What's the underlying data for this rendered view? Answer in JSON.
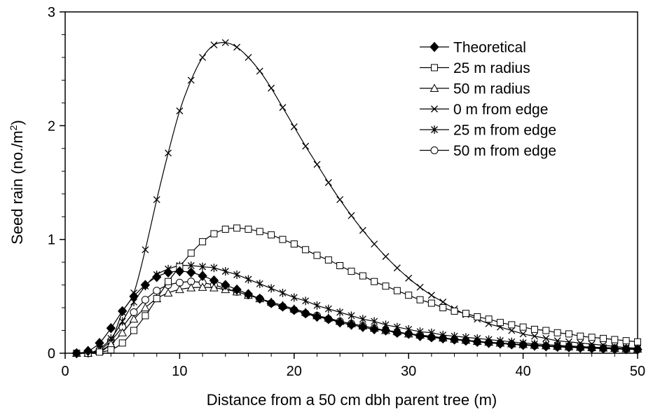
{
  "chart_data": {
    "type": "line",
    "xlabel": "Distance from a 50 cm dbh parent tree (m)",
    "ylabel_main": "Seed rain (no./m",
    "ylabel_sup": "2",
    "ylabel_tail": ")",
    "xlim": [
      0,
      50
    ],
    "ylim": [
      0,
      3
    ],
    "x_ticks": [
      "0",
      "10",
      "20",
      "30",
      "40",
      "50"
    ],
    "y_ticks": [
      "0",
      "1",
      "2",
      "3"
    ],
    "grid": false,
    "legend_position": "top-right",
    "x": [
      1,
      2,
      3,
      4,
      5,
      6,
      7,
      8,
      9,
      10,
      11,
      12,
      13,
      14,
      15,
      16,
      17,
      18,
      19,
      20,
      21,
      22,
      23,
      24,
      25,
      26,
      27,
      28,
      29,
      30,
      31,
      32,
      33,
      34,
      35,
      36,
      37,
      38,
      39,
      40,
      41,
      42,
      43,
      44,
      45,
      46,
      47,
      48,
      49,
      50
    ],
    "series": [
      {
        "name": "Theoretical",
        "marker": "diamond-filled",
        "values": [
          0,
          0.02,
          0.09,
          0.22,
          0.37,
          0.5,
          0.6,
          0.67,
          0.71,
          0.72,
          0.71,
          0.68,
          0.64,
          0.6,
          0.56,
          0.52,
          0.48,
          0.44,
          0.41,
          0.38,
          0.35,
          0.32,
          0.3,
          0.27,
          0.25,
          0.23,
          0.21,
          0.2,
          0.18,
          0.17,
          0.15,
          0.14,
          0.13,
          0.12,
          0.11,
          0.1,
          0.09,
          0.085,
          0.078,
          0.072,
          0.066,
          0.061,
          0.056,
          0.052,
          0.048,
          0.044,
          0.041,
          0.038,
          0.035,
          0.032
        ]
      },
      {
        "name": "25 m radius",
        "marker": "square-open",
        "values": [
          0,
          0,
          0.01,
          0.03,
          0.09,
          0.2,
          0.33,
          0.48,
          0.63,
          0.76,
          0.88,
          0.98,
          1.05,
          1.09,
          1.1,
          1.09,
          1.07,
          1.04,
          1.0,
          0.96,
          0.91,
          0.86,
          0.82,
          0.77,
          0.72,
          0.68,
          0.63,
          0.59,
          0.55,
          0.51,
          0.47,
          0.44,
          0.4,
          0.37,
          0.35,
          0.32,
          0.3,
          0.27,
          0.25,
          0.23,
          0.21,
          0.2,
          0.18,
          0.17,
          0.15,
          0.14,
          0.13,
          0.12,
          0.11,
          0.1
        ]
      },
      {
        "name": "50 m radius",
        "marker": "triangle-open",
        "values": [
          0,
          0,
          0.02,
          0.08,
          0.18,
          0.3,
          0.4,
          0.48,
          0.53,
          0.56,
          0.575,
          0.58,
          0.575,
          0.56,
          0.54,
          0.51,
          0.48,
          0.45,
          0.42,
          0.39,
          0.36,
          0.33,
          0.31,
          0.28,
          0.26,
          0.24,
          0.22,
          0.2,
          0.19,
          0.17,
          0.16,
          0.15,
          0.135,
          0.125,
          0.115,
          0.105,
          0.097,
          0.09,
          0.083,
          0.077,
          0.071,
          0.066,
          0.061,
          0.057,
          0.053,
          0.049,
          0.046,
          0.043,
          0.04,
          0.037
        ]
      },
      {
        "name": "0 m from edge",
        "marker": "x",
        "values": [
          0,
          0,
          0.01,
          0.1,
          0.36,
          0.53,
          0.91,
          1.35,
          1.76,
          2.13,
          2.4,
          2.6,
          2.71,
          2.73,
          2.69,
          2.6,
          2.48,
          2.33,
          2.16,
          1.99,
          1.82,
          1.66,
          1.5,
          1.35,
          1.21,
          1.08,
          0.96,
          0.85,
          0.75,
          0.66,
          0.58,
          0.51,
          0.45,
          0.39,
          0.34,
          0.3,
          0.26,
          0.23,
          0.2,
          0.17,
          0.15,
          0.13,
          0.11,
          0.1,
          0.09,
          0.08,
          0.07,
          0.06,
          0.05,
          0.045
        ]
      },
      {
        "name": "25 m from edge",
        "marker": "asterisk",
        "values": [
          0,
          0,
          0.04,
          0.13,
          0.28,
          0.45,
          0.59,
          0.69,
          0.74,
          0.77,
          0.77,
          0.76,
          0.75,
          0.72,
          0.69,
          0.65,
          0.61,
          0.57,
          0.53,
          0.49,
          0.46,
          0.42,
          0.39,
          0.36,
          0.33,
          0.3,
          0.28,
          0.25,
          0.23,
          0.21,
          0.19,
          0.18,
          0.16,
          0.15,
          0.14,
          0.13,
          0.12,
          0.11,
          0.1,
          0.09,
          0.083,
          0.076,
          0.07,
          0.064,
          0.059,
          0.054,
          0.05,
          0.046,
          0.042,
          0.039
        ]
      },
      {
        "name": "50 m from edge",
        "marker": "circle-open",
        "values": [
          0,
          0,
          0.03,
          0.11,
          0.23,
          0.36,
          0.47,
          0.55,
          0.6,
          0.62,
          0.63,
          0.62,
          0.6,
          0.57,
          0.54,
          0.51,
          0.48,
          0.44,
          0.41,
          0.38,
          0.35,
          0.33,
          0.3,
          0.28,
          0.26,
          0.24,
          0.22,
          0.2,
          0.18,
          0.17,
          0.16,
          0.14,
          0.13,
          0.12,
          0.11,
          0.1,
          0.093,
          0.086,
          0.079,
          0.073,
          0.067,
          0.062,
          0.057,
          0.053,
          0.049,
          0.045,
          0.042,
          0.039,
          0.036,
          0.033
        ]
      }
    ]
  }
}
